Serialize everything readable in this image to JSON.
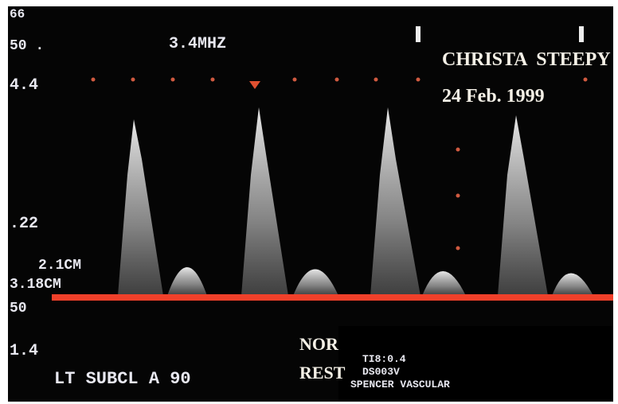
{
  "header": {
    "depth_top": "66",
    "depth_scale": "50 .",
    "frequency": "3.4MHZ"
  },
  "patient": {
    "name": "CHRISTA  STEEPY",
    "date": "24 Feb. 1999"
  },
  "scale": {
    "top": "4.4",
    "middle": ".22",
    "baseline": "50",
    "bottom": "1.4"
  },
  "measurements": [
    "2.1CM",
    "3.18CM"
  ],
  "label": "LT SUBCL A 90",
  "status": [
    "NOR",
    "REST"
  ],
  "info": [
    "TI8:0.4",
    "DS003V",
    "SPENCER VASCULAR"
  ]
}
